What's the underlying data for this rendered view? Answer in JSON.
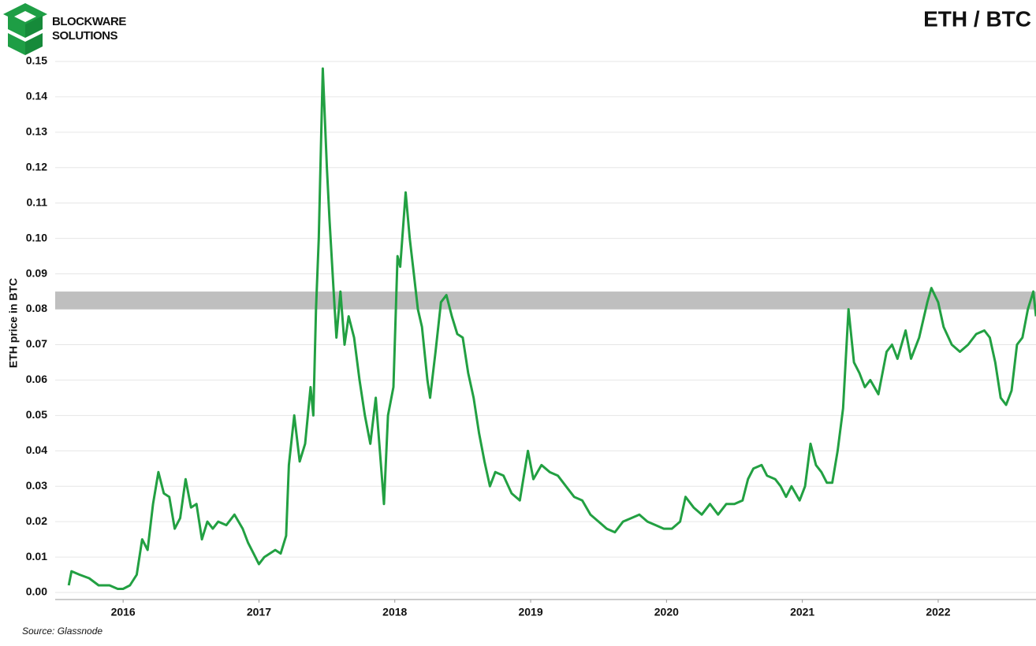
{
  "chart_data": {
    "type": "line",
    "title": "ETH / BTC",
    "logo_text": [
      "BLOCKWARE",
      "SOLUTIONS"
    ],
    "y_label": "ETH price in BTC",
    "source": "Source: Glassnode",
    "xlim": [
      2015.5,
      2022.72
    ],
    "xticks": [
      2016,
      2017,
      2018,
      2019,
      2020,
      2021,
      2022
    ],
    "ylim": [
      -0.002,
      0.15
    ],
    "yticks": [
      {
        "value": 0,
        "label": "0.00"
      },
      0.01,
      0.02,
      0.03,
      0.04,
      0.05,
      0.06,
      0.07,
      0.08,
      0.09,
      {
        "value": 0.1,
        "label": "0.10"
      },
      0.11,
      0.12,
      0.13,
      0.14,
      0.15
    ],
    "grid": true,
    "band": [
      0.08,
      0.085
    ],
    "band_color": "#bfbfbf",
    "series": [
      {
        "color": "#22a042",
        "x": [
          2015.6,
          2015.62,
          2015.68,
          2015.75,
          2015.82,
          2015.9,
          2015.96,
          2016.0,
          2016.05,
          2016.1,
          2016.14,
          2016.18,
          2016.22,
          2016.26,
          2016.3,
          2016.34,
          2016.38,
          2016.42,
          2016.46,
          2016.5,
          2016.54,
          2016.58,
          2016.62,
          2016.66,
          2016.7,
          2016.76,
          2016.82,
          2016.88,
          2016.92,
          2016.96,
          2017.0,
          2017.04,
          2017.08,
          2017.12,
          2017.16,
          2017.2,
          2017.22,
          2017.26,
          2017.3,
          2017.34,
          2017.38,
          2017.4,
          2017.42,
          2017.44,
          2017.47,
          2017.5,
          2017.52,
          2017.55,
          2017.57,
          2017.6,
          2017.63,
          2017.66,
          2017.7,
          2017.74,
          2017.78,
          2017.82,
          2017.86,
          2017.89,
          2017.92,
          2017.95,
          2017.99,
          2018.02,
          2018.04,
          2018.08,
          2018.11,
          2018.14,
          2018.17,
          2018.2,
          2018.24,
          2018.26,
          2018.3,
          2018.34,
          2018.38,
          2018.42,
          2018.46,
          2018.5,
          2018.54,
          2018.58,
          2018.62,
          2018.66,
          2018.7,
          2018.74,
          2018.8,
          2018.86,
          2018.92,
          2018.98,
          2019.02,
          2019.08,
          2019.14,
          2019.2,
          2019.26,
          2019.32,
          2019.38,
          2019.44,
          2019.5,
          2019.56,
          2019.62,
          2019.68,
          2019.74,
          2019.8,
          2019.86,
          2019.92,
          2019.98,
          2020.04,
          2020.1,
          2020.14,
          2020.2,
          2020.26,
          2020.32,
          2020.38,
          2020.44,
          2020.5,
          2020.56,
          2020.6,
          2020.64,
          2020.7,
          2020.74,
          2020.8,
          2020.84,
          2020.88,
          2020.92,
          2020.98,
          2021.02,
          2021.06,
          2021.1,
          2021.14,
          2021.18,
          2021.22,
          2021.26,
          2021.3,
          2021.34,
          2021.38,
          2021.42,
          2021.46,
          2021.5,
          2021.56,
          2021.62,
          2021.66,
          2021.7,
          2021.76,
          2021.8,
          2021.86,
          2021.92,
          2021.95,
          2022.0,
          2022.04,
          2022.1,
          2022.16,
          2022.22,
          2022.28,
          2022.34,
          2022.38,
          2022.42,
          2022.46,
          2022.5,
          2022.54,
          2022.58,
          2022.62,
          2022.66,
          2022.7,
          2022.72
        ],
        "values": [
          0.002,
          0.006,
          0.005,
          0.004,
          0.002,
          0.002,
          0.001,
          0.001,
          0.002,
          0.005,
          0.015,
          0.012,
          0.025,
          0.034,
          0.028,
          0.027,
          0.018,
          0.021,
          0.032,
          0.024,
          0.025,
          0.015,
          0.02,
          0.018,
          0.02,
          0.019,
          0.022,
          0.018,
          0.014,
          0.011,
          0.008,
          0.01,
          0.011,
          0.012,
          0.011,
          0.016,
          0.036,
          0.05,
          0.037,
          0.042,
          0.058,
          0.05,
          0.08,
          0.1,
          0.148,
          0.12,
          0.105,
          0.085,
          0.072,
          0.085,
          0.07,
          0.078,
          0.072,
          0.06,
          0.05,
          0.042,
          0.055,
          0.04,
          0.025,
          0.05,
          0.058,
          0.095,
          0.092,
          0.113,
          0.1,
          0.09,
          0.08,
          0.075,
          0.06,
          0.055,
          0.068,
          0.082,
          0.084,
          0.078,
          0.073,
          0.072,
          0.062,
          0.055,
          0.045,
          0.037,
          0.03,
          0.034,
          0.033,
          0.028,
          0.026,
          0.04,
          0.032,
          0.036,
          0.034,
          0.033,
          0.03,
          0.027,
          0.026,
          0.022,
          0.02,
          0.018,
          0.017,
          0.02,
          0.021,
          0.022,
          0.02,
          0.019,
          0.018,
          0.018,
          0.02,
          0.027,
          0.024,
          0.022,
          0.025,
          0.022,
          0.025,
          0.025,
          0.026,
          0.032,
          0.035,
          0.036,
          0.033,
          0.032,
          0.03,
          0.027,
          0.03,
          0.026,
          0.03,
          0.042,
          0.036,
          0.034,
          0.031,
          0.031,
          0.04,
          0.052,
          0.08,
          0.065,
          0.062,
          0.058,
          0.06,
          0.056,
          0.068,
          0.07,
          0.066,
          0.074,
          0.066,
          0.072,
          0.082,
          0.086,
          0.082,
          0.075,
          0.07,
          0.068,
          0.07,
          0.073,
          0.074,
          0.072,
          0.065,
          0.055,
          0.053,
          0.057,
          0.07,
          0.072,
          0.08,
          0.085,
          0.078
        ]
      }
    ]
  }
}
